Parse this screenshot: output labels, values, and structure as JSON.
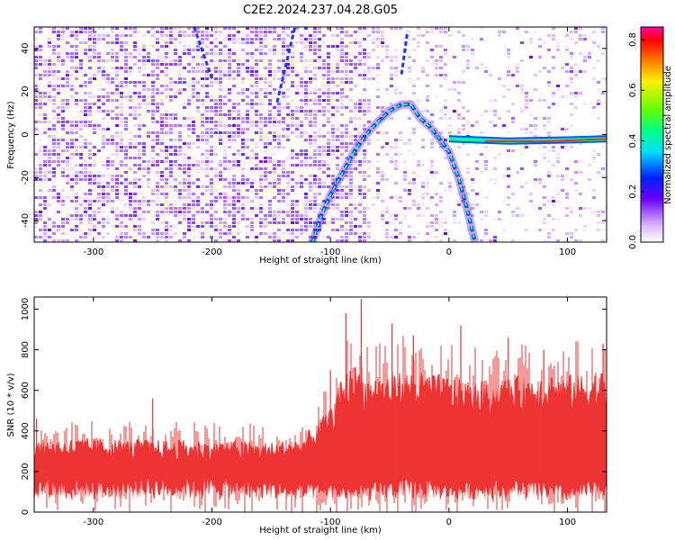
{
  "title": "C2E2.2024.237.04.28.G05",
  "chart_data": [
    {
      "type": "heatmap",
      "xlabel": "Height of straight line (km)",
      "ylabel": "Frequency (Hz)",
      "xlim": [
        -350,
        133
      ],
      "ylim": [
        -50,
        50
      ],
      "xticks": [
        -300,
        -200,
        -100,
        0,
        100
      ],
      "yticks": [
        -40,
        -20,
        0,
        20,
        40
      ],
      "colorbar": {
        "label": "Normalized spectral amplitude",
        "range": [
          0.0,
          0.85
        ],
        "ticks": [
          0.0,
          0.2,
          0.4,
          0.6,
          0.8
        ],
        "placement": "right"
      },
      "features": {
        "arc_points": [
          [
            -115,
            -50
          ],
          [
            -108,
            -38
          ],
          [
            -100,
            -28
          ],
          [
            -90,
            -18
          ],
          [
            -80,
            -8
          ],
          [
            -70,
            0
          ],
          [
            -60,
            6
          ],
          [
            -50,
            11
          ],
          [
            -40,
            14
          ],
          [
            -32,
            14
          ],
          [
            -25,
            8
          ],
          [
            -15,
            3
          ],
          [
            -8,
            -2
          ],
          [
            0,
            -8
          ],
          [
            8,
            -20
          ],
          [
            15,
            -34
          ],
          [
            22,
            -50
          ]
        ],
        "line_points": [
          [
            0,
            -2
          ],
          [
            50,
            -3
          ],
          [
            100,
            -2.5
          ],
          [
            133,
            -2
          ]
        ]
      }
    },
    {
      "type": "area",
      "xlabel": "Height of straight line (km)",
      "ylabel": "SNR (10 * v/v)",
      "xlim": [
        -350,
        133
      ],
      "ylim": [
        0,
        1060
      ],
      "xticks": [
        -300,
        -200,
        -100,
        0,
        100
      ],
      "yticks": [
        0,
        200,
        400,
        600,
        800,
        1000
      ],
      "series": [
        {
          "color": "#ee3333",
          "x": [
            -350,
            -300,
            -250,
            -200,
            -150,
            -125,
            -100,
            -90,
            -80,
            -70,
            -50,
            -25,
            0,
            25,
            50,
            75,
            100,
            133
          ],
          "upper": [
            330,
            340,
            330,
            330,
            320,
            340,
            470,
            620,
            680,
            620,
            640,
            650,
            620,
            600,
            610,
            640,
            630,
            650
          ],
          "lower": [
            120,
            110,
            120,
            120,
            110,
            100,
            100,
            100,
            90,
            100,
            110,
            120,
            100,
            110,
            120,
            110,
            90,
            120
          ],
          "peaks": [
            [
              -348,
              460
            ],
            [
              -250,
              560
            ],
            [
              -100,
              700
            ],
            [
              -87,
              980
            ],
            [
              -74,
              1050
            ],
            [
              -48,
              930
            ],
            [
              -30,
              870
            ],
            [
              10,
              920
            ],
            [
              50,
              860
            ],
            [
              80,
              800
            ],
            [
              130,
              830
            ]
          ]
        }
      ]
    }
  ]
}
